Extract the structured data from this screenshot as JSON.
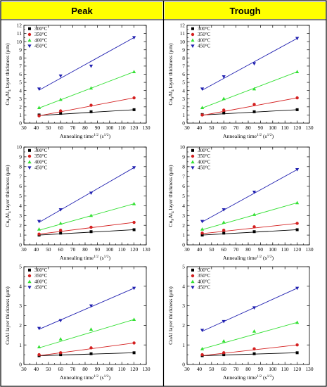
{
  "headers": {
    "left": "Peak",
    "right": "Trough"
  },
  "colors": {
    "header_bg": "#ffff00",
    "border": "#000000",
    "s300": "#000000",
    "s350": "#d42020",
    "s400": "#33e033",
    "s450": "#2020b0"
  },
  "chart_data": [
    {
      "type": "scatter",
      "panel": "peak-top",
      "xlabel": {
        "pre": "Annealing time",
        "sup1": "1/2",
        "mid": " (s",
        "sup2": "1/2",
        "post": ")"
      },
      "ylabel": {
        "pre": "Cu",
        "s1": "9",
        "mid": "Al",
        "s2": "4",
        "post": " layer thickness (μm)"
      },
      "xlim": [
        30,
        130
      ],
      "xticks": [
        "30",
        "40",
        "50",
        "60",
        "70",
        "80",
        "90",
        "100",
        "110",
        "120",
        "130"
      ],
      "ylim": [
        0,
        12
      ],
      "yticks": [
        "0",
        "1",
        "2",
        "3",
        "4",
        "5",
        "6",
        "7",
        "8",
        "9",
        "10",
        "11",
        "12"
      ],
      "legend_position": "top-left",
      "series": [
        {
          "name": "300°C",
          "x": [
            42.4,
            60,
            84.9,
            120
          ],
          "y": [
            1.0,
            1.2,
            1.4,
            1.65
          ],
          "line": [
            [
              42.4,
              0.93
            ],
            [
              120,
              1.65
            ]
          ]
        },
        {
          "name": "350°C",
          "x": [
            42.4,
            60,
            84.9,
            120
          ],
          "y": [
            0.9,
            1.5,
            2.2,
            3.1
          ],
          "line": [
            [
              42.4,
              0.9
            ],
            [
              120,
              3.1
            ]
          ]
        },
        {
          "name": "400°C",
          "x": [
            42.4,
            60,
            84.9,
            120
          ],
          "y": [
            1.9,
            2.9,
            4.3,
            6.3
          ],
          "line": [
            [
              42.4,
              1.85
            ],
            [
              120,
              6.3
            ]
          ]
        },
        {
          "name": "450°C",
          "x": [
            42.4,
            60,
            84.9,
            120
          ],
          "y": [
            4.2,
            5.8,
            7.0,
            10.5
          ],
          "line": [
            [
              42.4,
              4.05
            ],
            [
              120,
              10.5
            ]
          ]
        }
      ]
    },
    {
      "type": "scatter",
      "panel": "trough-top",
      "xlabel": {
        "pre": "Annealing time",
        "sup1": "1/2",
        "mid": " (s",
        "sup2": "1/2",
        "post": ")"
      },
      "ylabel": {
        "pre": "Cu",
        "s1": "9",
        "mid": "Al",
        "s2": "4",
        "post": " layer thickness (μm)"
      },
      "xlim": [
        30,
        130
      ],
      "xticks": [
        "30",
        "40",
        "50",
        "60",
        "70",
        "80",
        "90",
        "100",
        "110",
        "120",
        "130"
      ],
      "ylim": [
        0,
        12
      ],
      "yticks": [
        "0",
        "1",
        "2",
        "3",
        "4",
        "5",
        "6",
        "7",
        "8",
        "9",
        "10",
        "11",
        "12"
      ],
      "legend_position": "top-left",
      "series": [
        {
          "name": "300°C",
          "x": [
            42.4,
            60,
            84.9,
            120
          ],
          "y": [
            1.05,
            1.25,
            1.4,
            1.65
          ],
          "line": [
            [
              42.4,
              1.0
            ],
            [
              120,
              1.65
            ]
          ]
        },
        {
          "name": "350°C",
          "x": [
            42.4,
            60,
            84.9,
            120
          ],
          "y": [
            1.0,
            1.6,
            2.3,
            3.1
          ],
          "line": [
            [
              42.4,
              0.95
            ],
            [
              120,
              3.1
            ]
          ]
        },
        {
          "name": "400°C",
          "x": [
            42.4,
            60,
            84.9,
            120
          ],
          "y": [
            1.9,
            3.0,
            4.2,
            6.3
          ],
          "line": [
            [
              42.4,
              1.85
            ],
            [
              120,
              6.3
            ]
          ]
        },
        {
          "name": "450°C",
          "x": [
            42.4,
            60,
            84.9,
            120
          ],
          "y": [
            4.2,
            5.7,
            7.3,
            10.4
          ],
          "line": [
            [
              42.4,
              4.05
            ],
            [
              120,
              10.4
            ]
          ]
        }
      ]
    },
    {
      "type": "scatter",
      "panel": "peak-middle",
      "xlabel": {
        "pre": "Annealing time",
        "sup1": "1/2",
        "mid": " (s",
        "sup2": "1/2",
        "post": ")"
      },
      "ylabel": {
        "pre": "Cu",
        "s1": "9",
        "mid": "Al",
        "s2": "4",
        "post": " layer thickness (μm)"
      },
      "xlim": [
        30,
        130
      ],
      "xticks": [
        "30",
        "40",
        "50",
        "60",
        "70",
        "80",
        "90",
        "100",
        "110",
        "120",
        "130"
      ],
      "ylim": [
        0,
        10
      ],
      "yticks": [
        "0",
        "1",
        "2",
        "3",
        "4",
        "5",
        "6",
        "7",
        "8",
        "9",
        "10"
      ],
      "legend_position": "top-left",
      "series": [
        {
          "name": "300°C",
          "x": [
            42.4,
            60,
            84.9,
            120
          ],
          "y": [
            1.0,
            1.2,
            1.35,
            1.55
          ],
          "line": [
            [
              42.4,
              1.0
            ],
            [
              120,
              1.55
            ]
          ]
        },
        {
          "name": "350°C",
          "x": [
            42.4,
            60,
            84.9,
            120
          ],
          "y": [
            1.1,
            1.5,
            1.8,
            2.3
          ],
          "line": [
            [
              42.4,
              1.1
            ],
            [
              120,
              2.3
            ]
          ]
        },
        {
          "name": "400°C",
          "x": [
            42.4,
            60,
            84.9,
            120
          ],
          "y": [
            1.6,
            2.2,
            3.0,
            4.2
          ],
          "line": [
            [
              42.4,
              1.5
            ],
            [
              120,
              4.2
            ]
          ]
        },
        {
          "name": "450°C",
          "x": [
            42.4,
            60,
            84.9,
            120
          ],
          "y": [
            2.4,
            3.6,
            5.3,
            7.9
          ],
          "line": [
            [
              42.4,
              2.3
            ],
            [
              120,
              7.9
            ]
          ]
        }
      ]
    },
    {
      "type": "scatter",
      "panel": "trough-middle",
      "xlabel": {
        "pre": "Annealing time",
        "sup1": "1/2",
        "mid": " (s",
        "sup2": "1/2",
        "post": ")"
      },
      "ylabel": {
        "pre": "Cu",
        "s1": "9",
        "mid": "Al",
        "s2": "4",
        "post": " layer thickness (μm)"
      },
      "xlim": [
        30,
        130
      ],
      "xticks": [
        "30",
        "40",
        "50",
        "60",
        "70",
        "80",
        "90",
        "100",
        "110",
        "120",
        "130"
      ],
      "ylim": [
        0,
        10
      ],
      "yticks": [
        "0",
        "1",
        "2",
        "3",
        "4",
        "5",
        "6",
        "7",
        "8",
        "9",
        "10"
      ],
      "legend_position": "top-left",
      "series": [
        {
          "name": "300°C",
          "x": [
            42.4,
            60,
            84.9,
            120
          ],
          "y": [
            1.0,
            1.2,
            1.35,
            1.55
          ],
          "line": [
            [
              42.4,
              1.0
            ],
            [
              120,
              1.55
            ]
          ]
        },
        {
          "name": "350°C",
          "x": [
            42.4,
            60,
            84.9,
            120
          ],
          "y": [
            1.2,
            1.5,
            1.85,
            2.2
          ],
          "line": [
            [
              42.4,
              1.15
            ],
            [
              120,
              2.2
            ]
          ]
        },
        {
          "name": "400°C",
          "x": [
            42.4,
            60,
            84.9,
            120
          ],
          "y": [
            1.6,
            2.3,
            3.1,
            4.3
          ],
          "line": [
            [
              42.4,
              1.55
            ],
            [
              120,
              4.3
            ]
          ]
        },
        {
          "name": "450°C",
          "x": [
            42.4,
            60,
            84.9,
            120
          ],
          "y": [
            2.4,
            3.6,
            5.4,
            7.7
          ],
          "line": [
            [
              42.4,
              2.35
            ],
            [
              120,
              7.7
            ]
          ]
        }
      ]
    },
    {
      "type": "scatter",
      "panel": "peak-bottom",
      "xlabel": {
        "pre": "Annealing time",
        "sup1": "1/2",
        "mid": " (s",
        "sup2": "1/2",
        "post": ")"
      },
      "ylabel": {
        "pre": "CuAl layer thickness (μm)",
        "s1": "",
        "mid": "",
        "s2": "",
        "post": ""
      },
      "xlim": [
        30,
        130
      ],
      "xticks": [
        "30",
        "40",
        "50",
        "60",
        "70",
        "80",
        "90",
        "100",
        "110",
        "120",
        "130"
      ],
      "ylim": [
        0,
        5
      ],
      "yticks": [
        "0",
        "1",
        "2",
        "3",
        "4",
        "5"
      ],
      "legend_position": "top-left",
      "series": [
        {
          "name": "300°C",
          "x": [
            42.4,
            60,
            84.9,
            120
          ],
          "y": [
            0.45,
            0.5,
            0.55,
            0.6
          ],
          "line": [
            [
              42.4,
              0.45
            ],
            [
              120,
              0.6
            ]
          ]
        },
        {
          "name": "350°C",
          "x": [
            42.4,
            60,
            84.9,
            120
          ],
          "y": [
            0.5,
            0.6,
            0.85,
            1.1
          ],
          "line": [
            [
              42.4,
              0.45
            ],
            [
              120,
              1.1
            ]
          ]
        },
        {
          "name": "400°C",
          "x": [
            42.4,
            60,
            84.9,
            120
          ],
          "y": [
            0.9,
            1.3,
            1.8,
            2.3
          ],
          "line": [
            [
              42.4,
              0.85
            ],
            [
              120,
              2.3
            ]
          ]
        },
        {
          "name": "450°C",
          "x": [
            42.4,
            60,
            84.9,
            120
          ],
          "y": [
            1.85,
            2.25,
            3.0,
            3.9
          ],
          "line": [
            [
              42.4,
              1.8
            ],
            [
              120,
              3.9
            ]
          ]
        }
      ]
    },
    {
      "type": "scatter",
      "panel": "trough-bottom",
      "xlabel": {
        "pre": "Annealing time",
        "sup1": "1/2",
        "mid": " (s",
        "sup2": "1/2",
        "post": ")"
      },
      "ylabel": {
        "pre": "CuAl layer thickness (μm)",
        "s1": "",
        "mid": "",
        "s2": "",
        "post": ""
      },
      "xlim": [
        30,
        130
      ],
      "xticks": [
        "30",
        "40",
        "50",
        "60",
        "70",
        "80",
        "90",
        "100",
        "110",
        "120",
        "130"
      ],
      "ylim": [
        0,
        5
      ],
      "yticks": [
        "0",
        "1",
        "2",
        "3",
        "4",
        "5"
      ],
      "legend_position": "top-left",
      "series": [
        {
          "name": "300°C",
          "x": [
            42.4,
            60,
            84.9,
            120
          ],
          "y": [
            0.45,
            0.5,
            0.55,
            0.6
          ],
          "line": [
            [
              42.4,
              0.45
            ],
            [
              120,
              0.6
            ]
          ]
        },
        {
          "name": "350°C",
          "x": [
            42.4,
            60,
            84.9,
            120
          ],
          "y": [
            0.5,
            0.6,
            0.8,
            1.0
          ],
          "line": [
            [
              42.4,
              0.45
            ],
            [
              120,
              1.0
            ]
          ]
        },
        {
          "name": "400°C",
          "x": [
            42.4,
            60,
            84.9,
            120
          ],
          "y": [
            0.8,
            1.2,
            1.7,
            2.15
          ],
          "line": [
            [
              42.4,
              0.8
            ],
            [
              120,
              2.15
            ]
          ]
        },
        {
          "name": "450°C",
          "x": [
            42.4,
            60,
            84.9,
            120
          ],
          "y": [
            1.75,
            2.2,
            2.9,
            3.9
          ],
          "line": [
            [
              42.4,
              1.7
            ],
            [
              120,
              3.9
            ]
          ]
        }
      ]
    }
  ]
}
